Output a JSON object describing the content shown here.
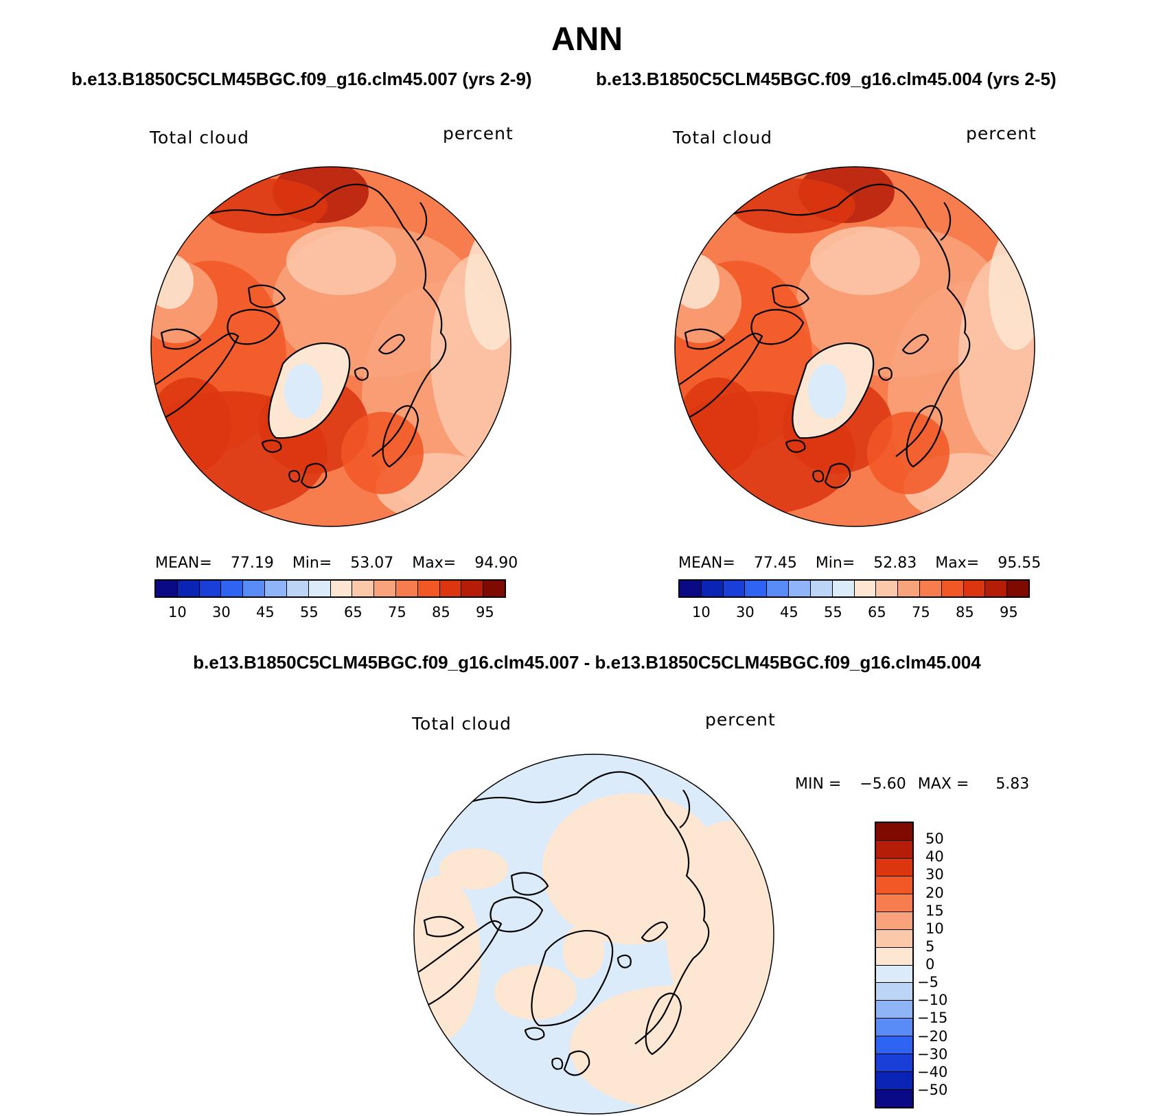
{
  "title": "ANN",
  "case1_title": "b.e13.B1850C5CLM45BGC.f09_g16.clm45.007 (yrs 2-9)",
  "case2_title": "b.e13.B1850C5CLM45BGC.f09_g16.clm45.004 (yrs 2-5)",
  "diff_title": "b.e13.B1850C5CLM45BGC.f09_g16.clm45.007 - b.e13.B1850C5CLM45BGC.f09_g16.clm45.004",
  "panels": [
    {
      "variable": "Total cloud",
      "units": "percent",
      "stats": {
        "mean_label": "MEAN=",
        "mean": "77.19",
        "min_label": "Min=",
        "min": "53.07",
        "max_label": "Max=",
        "max": "94.90"
      }
    },
    {
      "variable": "Total cloud",
      "units": "percent",
      "stats": {
        "mean_label": "MEAN=",
        "mean": "77.45",
        "min_label": "Min=",
        "min": "52.83",
        "max_label": "Max=",
        "max": "95.55"
      }
    }
  ],
  "diff_panel": {
    "variable": "Total cloud",
    "units": "percent",
    "min_label": "MIN =",
    "min": "−5.60",
    "max_label": "MAX =",
    "max": "5.83"
  },
  "colorbar_abs": {
    "colors": [
      "#0a0a86",
      "#0a24b4",
      "#1a3fd8",
      "#2f64f2",
      "#5a8cf8",
      "#8fb4f8",
      "#bcd5f6",
      "#dcebfa",
      "#fde6d2",
      "#fcc8aa",
      "#f9a37c",
      "#f77c4e",
      "#f25726",
      "#dc3610",
      "#b51d08",
      "#7f0a02"
    ],
    "tick_labels": [
      "10",
      "30",
      "45",
      "55",
      "65",
      "75",
      "85",
      "95"
    ]
  },
  "colorbar_diff": {
    "colors": [
      "#7f0a02",
      "#b51d08",
      "#dc3610",
      "#f25726",
      "#f77c4e",
      "#f9a37c",
      "#fcc8aa",
      "#fde6d2",
      "#dcebfa",
      "#bcd5f6",
      "#8fb4f8",
      "#5a8cf8",
      "#2f64f2",
      "#1a3fd8",
      "#0a24b4",
      "#0a0a86"
    ],
    "tick_labels": [
      "50",
      "40",
      "30",
      "20",
      "15",
      "10",
      "5",
      "0",
      "−5",
      "−10",
      "−15",
      "−20",
      "−30",
      "−40",
      "−50"
    ]
  }
}
